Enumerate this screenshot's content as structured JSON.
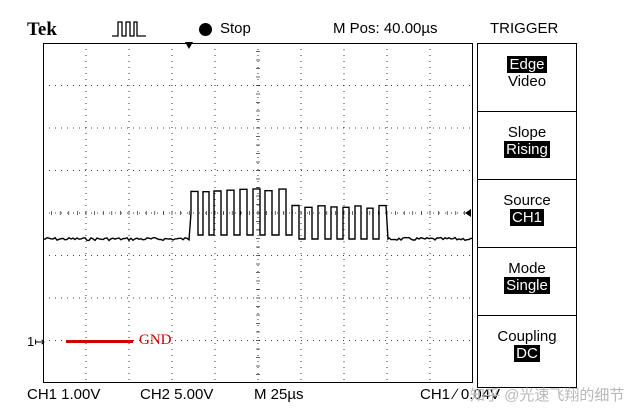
{
  "header": {
    "brand": "Tek",
    "acquisition_icon": "pulse-icon",
    "run_state_icon": "stop-dot-icon",
    "run_state": "Stop",
    "m_pos": "M Pos: 40.00µs",
    "menu_title": "TRIGGER"
  },
  "trigger_menu": [
    {
      "line1": "Edge",
      "line2": "Video",
      "highlight": "line1"
    },
    {
      "line1": "Slope",
      "line2": "Rising",
      "highlight": "line2"
    },
    {
      "line1": "Source",
      "line2": "CH1",
      "highlight": "line2"
    },
    {
      "line1": "Mode",
      "line2": "Single",
      "highlight": "line2"
    },
    {
      "line1": "Coupling",
      "line2": "DC",
      "highlight": "line2"
    }
  ],
  "annotation": {
    "gnd_label": "GND",
    "gnd_color": "#d00000",
    "channel_marker": "1↦"
  },
  "footer": {
    "ch1_scale": "CH1 1.00V",
    "ch2_scale": "CH2 5.00V",
    "time_base": "M 25µs",
    "trigger_readout": "CH1 ∕ 0.04V",
    "watermark": "知乎 @光速飞翔的细节"
  },
  "colors": {
    "trace": "#000000",
    "grid": "#000000",
    "background": "#ffffff"
  }
}
